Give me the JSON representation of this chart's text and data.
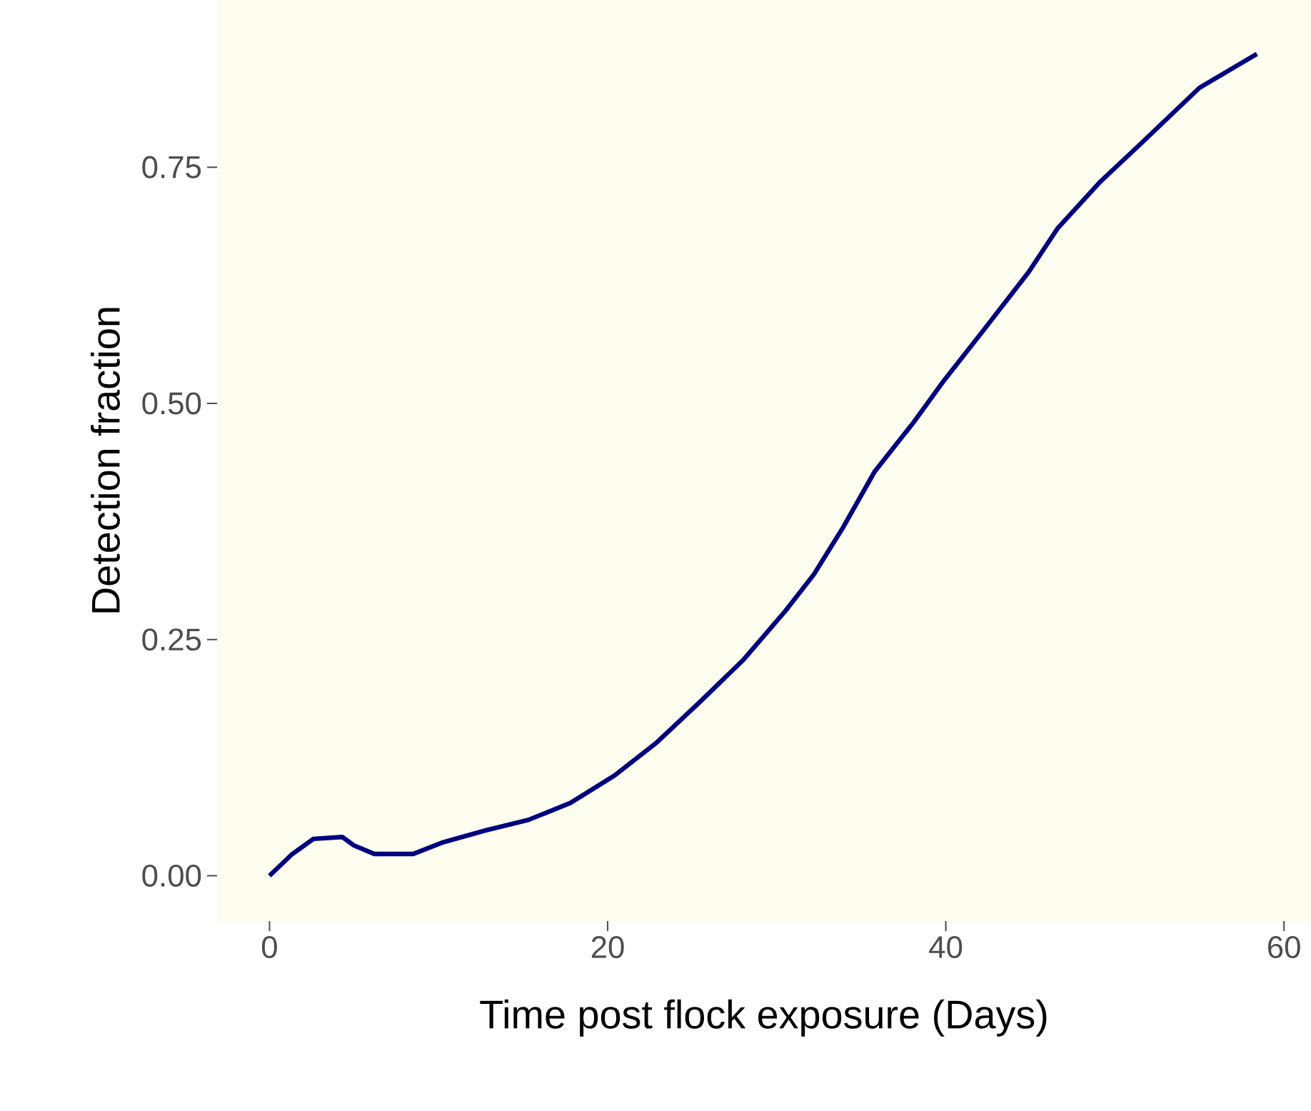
{
  "chart_data": {
    "type": "line",
    "xlabel": "Time post flock exposure (Days)",
    "ylabel": "Detection fraction",
    "xlim": [
      -3.1,
      61.6
    ],
    "ylim": [
      -0.048,
      0.927
    ],
    "xticks": [
      0,
      20,
      40,
      60
    ],
    "yticks": [
      {
        "value": 0,
        "label": "0.00"
      },
      {
        "value": 0.25,
        "label": "0.25"
      },
      {
        "value": 0.5,
        "label": "0.50"
      },
      {
        "value": 0.75,
        "label": "0.75"
      }
    ],
    "series": [
      {
        "color": "#00007f",
        "x": [
          0,
          1.35,
          2.6,
          4.3,
          5.0,
          6.2,
          8.5,
          10.2,
          12.8,
          15.3,
          17.8,
          20.4,
          22.9,
          25.4,
          28.0,
          30.5,
          32.2,
          33.9,
          35.8,
          38.1,
          39.8,
          42.3,
          44.9,
          46.6,
          49.1,
          51.6,
          55.0,
          58.4
        ],
        "values": [
          0,
          0.023,
          0.039,
          0.041,
          0.032,
          0.023,
          0.023,
          0.035,
          0.048,
          0.059,
          0.077,
          0.106,
          0.141,
          0.183,
          0.228,
          0.28,
          0.319,
          0.368,
          0.428,
          0.48,
          0.522,
          0.579,
          0.639,
          0.685,
          0.734,
          0.776,
          0.834,
          0.87
        ]
      }
    ]
  }
}
